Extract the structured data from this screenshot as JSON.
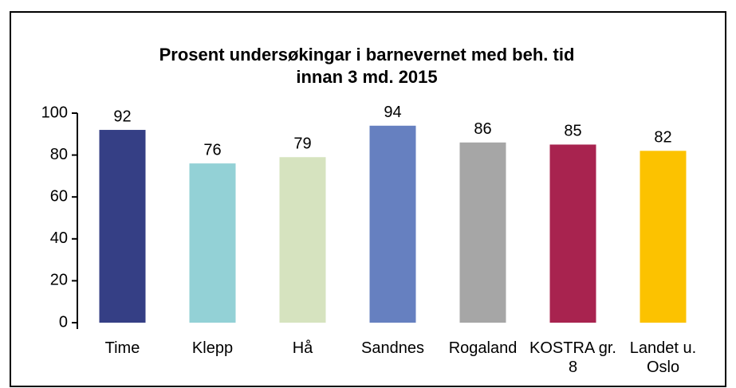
{
  "chart_data": {
    "type": "bar",
    "title": "Prosent undersøkingar i barnevernet med beh. tid innan 3 md. 2015",
    "categories": [
      "Time",
      "Klepp",
      "Hå",
      "Sandnes",
      "Rogaland",
      "KOSTRA gr. 8",
      "Landet u. Oslo"
    ],
    "values": [
      92,
      76,
      79,
      94,
      86,
      85,
      82
    ],
    "colors": [
      "#353f85",
      "#93d1d6",
      "#d6e3bf",
      "#6680c0",
      "#a6a6a6",
      "#a8234f",
      "#fcc200"
    ],
    "ylim": [
      0,
      100
    ],
    "yticks": [
      0,
      20,
      40,
      60,
      80,
      100
    ],
    "grid": false
  }
}
